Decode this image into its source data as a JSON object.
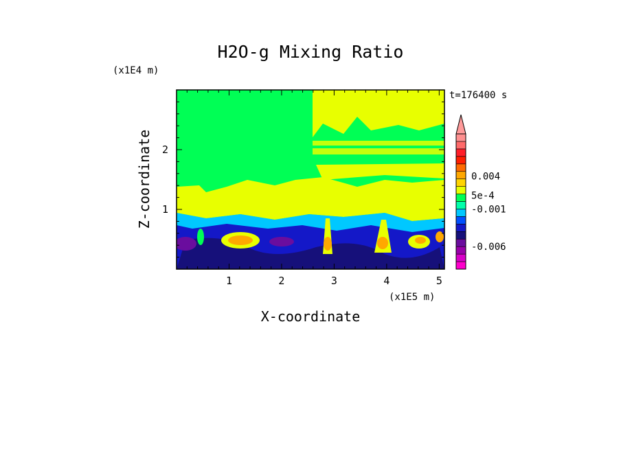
{
  "chart_data": {
    "type": "heatmap",
    "title": "H2O-g Mixing Ratio",
    "time_label": "t=176400 s",
    "xlabel": "X-coordinate",
    "ylabel": "Z-coordinate",
    "x_scale_label": "(x1E5 m)",
    "y_scale_label": "(x1E4 m)",
    "xlim": [
      0.0,
      5.1
    ],
    "ylim": [
      0.0,
      3.0
    ],
    "x_ticks": [
      "1",
      "2",
      "3",
      "4",
      "5"
    ],
    "x_tick_values": [
      1,
      2,
      3,
      4,
      5
    ],
    "y_ticks": [
      "1",
      "2"
    ],
    "y_tick_values": [
      1,
      2
    ],
    "colorbar": {
      "orientation": "vertical",
      "extend": "max",
      "colors": [
        "#ff00cc",
        "#d800c8",
        "#9900aa",
        "#6a0d9e",
        "#16107a",
        "#1418c8",
        "#0050ff",
        "#00c8ff",
        "#00ffaa",
        "#00ff55",
        "#e8ff00",
        "#ffd400",
        "#ffa800",
        "#ff6a00",
        "#ff1e00",
        "#ff1e28",
        "#ff6a6a",
        "#ff9090"
      ],
      "extend_color": "#ff9a9a",
      "labels": [
        {
          "text": "0.004",
          "level": 0.004
        },
        {
          "text": "5e-4",
          "level": 0.0005
        },
        {
          "text": "-0.001",
          "level": -0.001
        },
        {
          "text": "-0.006",
          "level": -0.006
        }
      ]
    },
    "field_description_levels": {
      "upper_background": 0.0,
      "upper_patches": 0.0005,
      "mid_band": 0.0005,
      "lower_layer": -0.003,
      "plumes": 0.001
    }
  }
}
